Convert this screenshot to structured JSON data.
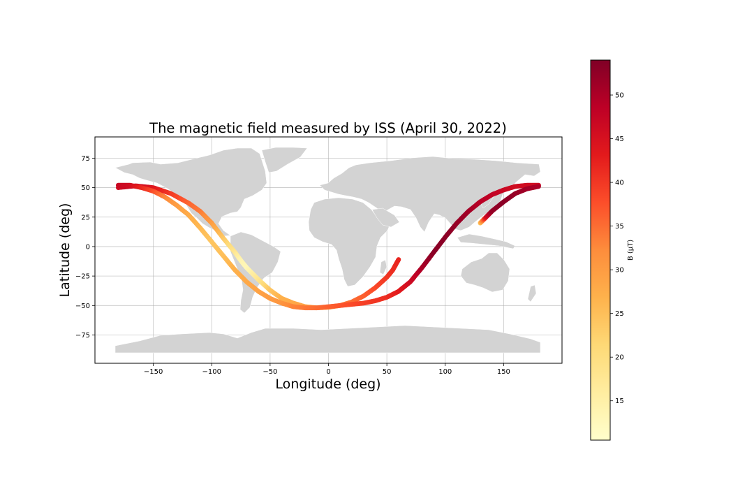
{
  "chart_data": {
    "type": "scatter",
    "title": "The magnetic field measured by ISS (April 30, 2022)",
    "xlabel": "Longitude (deg)",
    "ylabel": "Latitude (deg)",
    "xlim": [
      -200,
      200
    ],
    "ylim": [
      -99,
      93
    ],
    "xticks": [
      -150,
      -100,
      -50,
      0,
      50,
      100,
      150
    ],
    "xtick_labels": [
      "−150",
      "−100",
      "−50",
      "0",
      "50",
      "100",
      "150"
    ],
    "yticks": [
      75,
      50,
      25,
      0,
      -25,
      -50,
      -75
    ],
    "ytick_labels": [
      "75",
      "50",
      "25",
      "0",
      "−25",
      "−50",
      "−75"
    ],
    "grid": true,
    "colormap": "YlOrRd",
    "colormap_stops": [
      "#ffffcc",
      "#ffeda0",
      "#fed976",
      "#feb24c",
      "#fd8d3c",
      "#fc4e2a",
      "#e31a1c",
      "#bd0026",
      "#800026"
    ],
    "basemap_color": "#d3d3d3",
    "colorbar": {
      "label": "B (μT)",
      "range": [
        10.5,
        54
      ],
      "ticks": [
        15,
        20,
        25,
        30,
        35,
        40,
        45,
        50
      ],
      "tick_labels": [
        "15",
        "20",
        "25",
        "30",
        "35",
        "40",
        "45",
        "50"
      ]
    },
    "tracks": [
      {
        "points": [
          [
            -180,
            50,
            46
          ],
          [
            -165,
            51.5,
            47
          ],
          [
            -150,
            50,
            44
          ],
          [
            -135,
            45,
            40
          ],
          [
            -120,
            37,
            36
          ],
          [
            -110,
            30,
            34
          ],
          [
            -100,
            20,
            30
          ],
          [
            -90,
            7,
            24
          ],
          [
            -80,
            -5,
            18
          ],
          [
            -75,
            -12,
            14
          ],
          [
            -70,
            -18,
            13
          ],
          [
            -60,
            -28,
            18
          ],
          [
            -50,
            -37,
            24
          ],
          [
            -40,
            -44,
            27
          ],
          [
            -30,
            -48,
            28
          ],
          [
            -20,
            -51,
            29
          ],
          [
            -10,
            -52,
            30
          ],
          [
            0,
            -51.5,
            31
          ],
          [
            10,
            -50,
            33
          ],
          [
            20,
            -47,
            35
          ],
          [
            30,
            -42,
            36
          ],
          [
            40,
            -35,
            38
          ],
          [
            50,
            -26,
            40
          ],
          [
            55,
            -20,
            41
          ],
          [
            60,
            -11,
            42
          ]
        ]
      },
      {
        "points": [
          [
            -180,
            52,
            47
          ],
          [
            -170,
            52,
            46
          ],
          [
            -160,
            50,
            42
          ],
          [
            -150,
            47,
            38
          ],
          [
            -140,
            42,
            33
          ],
          [
            -130,
            35,
            30
          ],
          [
            -120,
            27,
            28
          ],
          [
            -110,
            16,
            26
          ],
          [
            -100,
            4,
            24
          ],
          [
            -90,
            -8,
            25
          ],
          [
            -80,
            -20,
            27
          ],
          [
            -70,
            -30,
            28
          ],
          [
            -60,
            -38,
            29
          ],
          [
            -50,
            -44,
            30
          ],
          [
            -40,
            -48,
            31
          ],
          [
            -30,
            -51,
            33
          ],
          [
            -20,
            -52,
            34
          ],
          [
            -10,
            -52,
            35
          ],
          [
            0,
            -51,
            36
          ],
          [
            10,
            -50,
            37
          ],
          [
            20,
            -49,
            38
          ],
          [
            30,
            -48,
            39
          ],
          [
            40,
            -46,
            40
          ],
          [
            50,
            -43,
            41
          ],
          [
            60,
            -38,
            43
          ],
          [
            70,
            -30,
            46
          ],
          [
            80,
            -18,
            50
          ],
          [
            90,
            -5,
            53
          ],
          [
            100,
            8,
            53
          ],
          [
            110,
            20,
            52
          ],
          [
            120,
            30,
            51
          ],
          [
            130,
            38,
            49
          ],
          [
            140,
            44,
            48
          ],
          [
            150,
            48,
            47
          ],
          [
            160,
            51,
            46
          ],
          [
            170,
            52,
            46
          ],
          [
            180,
            52,
            46
          ]
        ]
      },
      {
        "points": [
          [
            130,
            20,
            25
          ],
          [
            135,
            25,
            45
          ],
          [
            140,
            30,
            52
          ],
          [
            150,
            38,
            53
          ],
          [
            160,
            45,
            52
          ],
          [
            170,
            49,
            51
          ],
          [
            180,
            51,
            50
          ]
        ]
      }
    ]
  }
}
